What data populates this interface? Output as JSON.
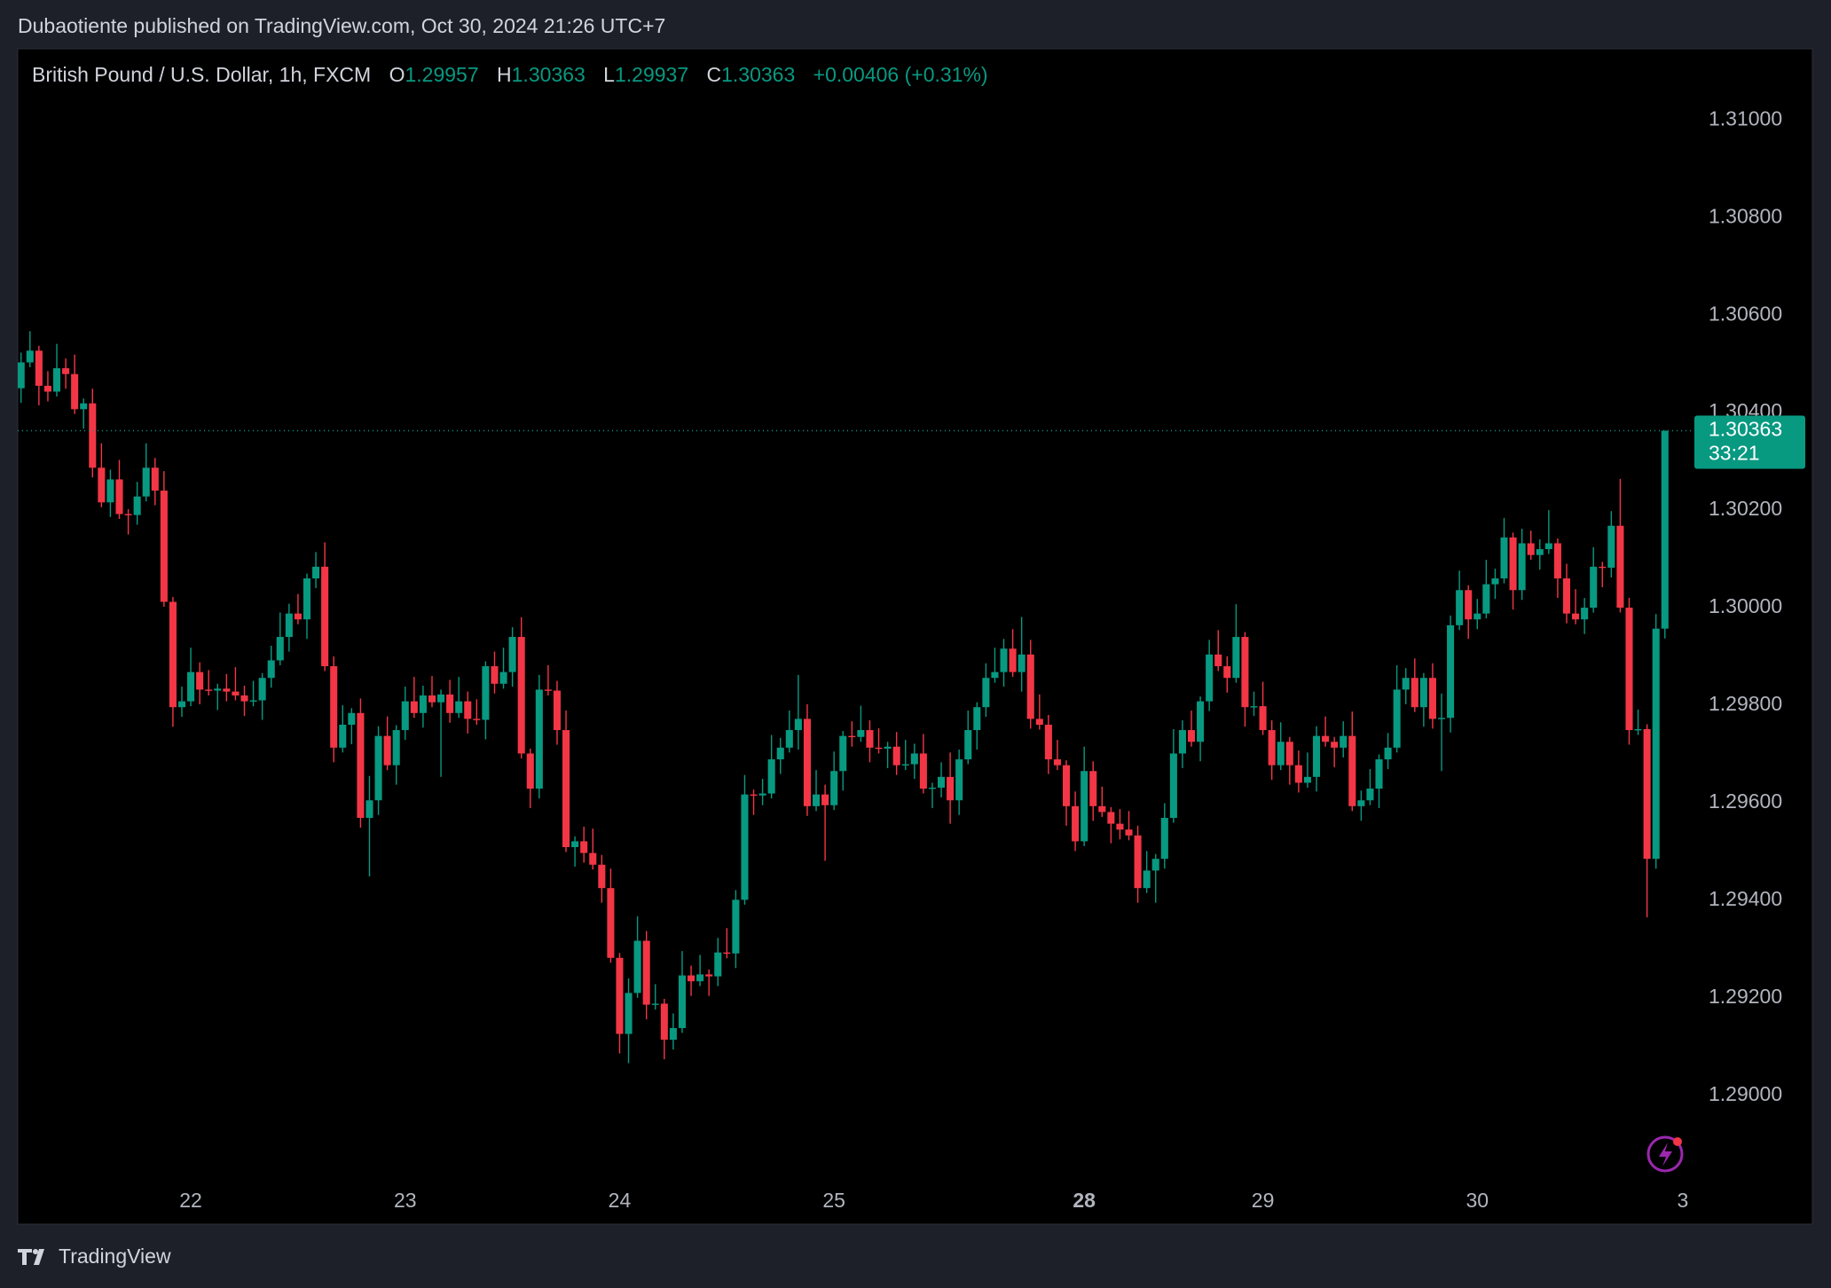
{
  "chart_data": {
    "type": "candlestick",
    "published": "Dubaotiente published on TradingView.com, Oct 30, 2024 21:26 UTC+7",
    "title": "British Pound / U.S. Dollar, 1h, FXCM",
    "ohlc_labels": [
      "O",
      "H",
      "L",
      "C"
    ],
    "change": "+0.00406 (+0.31%)",
    "countdown": "33:21",
    "brand": "TradingView",
    "up_color": "#089981",
    "down_color": "#f23645",
    "grid": false,
    "xlim": [
      -0.37,
      187.2
    ],
    "xticks": [
      {
        "value": 19,
        "label": "22"
      },
      {
        "value": 43,
        "label": "23"
      },
      {
        "value": 67,
        "label": "24"
      },
      {
        "value": 91,
        "label": "25"
      },
      {
        "value": 119,
        "label": "28",
        "bold": true
      },
      {
        "value": 139,
        "label": "29"
      },
      {
        "value": 163,
        "label": "30"
      },
      {
        "value": 186,
        "label": "3"
      }
    ],
    "ylim": [
      1.28816,
      1.31146
    ],
    "yticks": [
      {
        "value": 1.29,
        "label": "1.29000"
      },
      {
        "value": 1.292,
        "label": "1.29200"
      },
      {
        "value": 1.294,
        "label": "1.29400"
      },
      {
        "value": 1.296,
        "label": "1.29600"
      },
      {
        "value": 1.298,
        "label": "1.29800"
      },
      {
        "value": 1.3,
        "label": "1.30000"
      },
      {
        "value": 1.302,
        "label": "1.30200"
      },
      {
        "value": 1.304,
        "label": "1.30400"
      },
      {
        "value": 1.306,
        "label": "1.30600"
      },
      {
        "value": 1.308,
        "label": "1.30800"
      },
      {
        "value": 1.31,
        "label": "1.31000"
      }
    ],
    "candles": [
      [
        1.3045,
        1.30523,
        1.3042,
        1.30503
      ],
      [
        1.30503,
        1.30567,
        1.30493,
        1.30527
      ],
      [
        1.30527,
        1.30537,
        1.30415,
        1.30455
      ],
      [
        1.30455,
        1.30485,
        1.30423,
        1.30443
      ],
      [
        1.30443,
        1.30541,
        1.30433,
        1.30491
      ],
      [
        1.30491,
        1.30511,
        1.30449,
        1.30479
      ],
      [
        1.30479,
        1.30519,
        1.30397,
        1.30407
      ],
      [
        1.30407,
        1.30429,
        1.30367,
        1.30419
      ],
      [
        1.30419,
        1.30449,
        1.30267,
        1.30287
      ],
      [
        1.30287,
        1.30337,
        1.30206,
        1.30216
      ],
      [
        1.30216,
        1.30283,
        1.30186,
        1.30263
      ],
      [
        1.30263,
        1.30303,
        1.30182,
        1.30192
      ],
      [
        1.30192,
        1.30202,
        1.3015,
        1.3019
      ],
      [
        1.3019,
        1.30258,
        1.3017,
        1.30228
      ],
      [
        1.30228,
        1.30337,
        1.30218,
        1.30287
      ],
      [
        1.30287,
        1.30307,
        1.3021,
        1.3024
      ],
      [
        1.3024,
        1.3028,
        1.30002,
        1.30012
      ],
      [
        1.30012,
        1.30022,
        1.29756,
        1.29796
      ],
      [
        1.29796,
        1.29838,
        1.29776,
        1.29808
      ],
      [
        1.29808,
        1.29918,
        1.29798,
        1.29868
      ],
      [
        1.29868,
        1.29888,
        1.29802,
        1.29832
      ],
      [
        1.29832,
        1.29872,
        1.2982,
        1.2983
      ],
      [
        1.2983,
        1.29844,
        1.2979,
        1.29834
      ],
      [
        1.29834,
        1.29864,
        1.29808,
        1.29828
      ],
      [
        1.29828,
        1.29878,
        1.2981,
        1.2982
      ],
      [
        1.2982,
        1.2984,
        1.29778,
        1.29808
      ],
      [
        1.29808,
        1.2985,
        1.29798,
        1.2981
      ],
      [
        1.2981,
        1.29866,
        1.2977,
        1.29856
      ],
      [
        1.29856,
        1.29922,
        1.29836,
        1.29892
      ],
      [
        1.29892,
        1.2999,
        1.29882,
        1.2994
      ],
      [
        1.2994,
        1.30008,
        1.2991,
        1.29988
      ],
      [
        1.29988,
        1.30028,
        1.29966,
        1.29976
      ],
      [
        1.29976,
        1.3007,
        1.29936,
        1.3006
      ],
      [
        1.3006,
        1.30114,
        1.3004,
        1.30084
      ],
      [
        1.30084,
        1.30134,
        1.2987,
        1.2988
      ],
      [
        1.2988,
        1.299,
        1.29683,
        1.29713
      ],
      [
        1.29713,
        1.298,
        1.29703,
        1.2976
      ],
      [
        1.2976,
        1.29794,
        1.2972,
        1.29784
      ],
      [
        1.29784,
        1.29814,
        1.29549,
        1.29569
      ],
      [
        1.29569,
        1.29655,
        1.29449,
        1.29605
      ],
      [
        1.29605,
        1.29757,
        1.29575,
        1.29737
      ],
      [
        1.29737,
        1.29777,
        1.29667,
        1.29677
      ],
      [
        1.29677,
        1.29759,
        1.29637,
        1.29749
      ],
      [
        1.29749,
        1.29838,
        1.29729,
        1.29808
      ],
      [
        1.29808,
        1.29858,
        1.29774,
        1.29784
      ],
      [
        1.29784,
        1.2984,
        1.29754,
        1.2982
      ],
      [
        1.2982,
        1.2986,
        1.29796,
        1.29806
      ],
      [
        1.29806,
        1.29832,
        1.29653,
        1.29822
      ],
      [
        1.29822,
        1.29852,
        1.29764,
        1.29784
      ],
      [
        1.29784,
        1.29858,
        1.29774,
        1.29808
      ],
      [
        1.29808,
        1.29828,
        1.29742,
        1.29772
      ],
      [
        1.29772,
        1.29812,
        1.2976,
        1.2977
      ],
      [
        1.2977,
        1.2989,
        1.2973,
        1.2988
      ],
      [
        1.2988,
        1.2991,
        1.29824,
        1.29844
      ],
      [
        1.29844,
        1.29918,
        1.29834,
        1.29868
      ],
      [
        1.29868,
        1.2996,
        1.29838,
        1.2994
      ],
      [
        1.2994,
        1.2998,
        1.29691,
        1.29701
      ],
      [
        1.29701,
        1.29711,
        1.29589,
        1.29629
      ],
      [
        1.29629,
        1.29862,
        1.29609,
        1.29832
      ],
      [
        1.29832,
        1.29882,
        1.2982,
        1.2983
      ],
      [
        1.2983,
        1.2985,
        1.29719,
        1.29749
      ],
      [
        1.29749,
        1.29789,
        1.29499,
        1.29509
      ],
      [
        1.29509,
        1.29531,
        1.29469,
        1.29521
      ],
      [
        1.29521,
        1.29551,
        1.29477,
        1.29497
      ],
      [
        1.29497,
        1.29547,
        1.29463,
        1.29473
      ],
      [
        1.29473,
        1.29493,
        1.29395,
        1.29425
      ],
      [
        1.29425,
        1.29465,
        1.29272,
        1.29282
      ],
      [
        1.29282,
        1.29292,
        1.29086,
        1.29126
      ],
      [
        1.29126,
        1.2924,
        1.29066,
        1.2921
      ],
      [
        1.2921,
        1.29367,
        1.292,
        1.29317
      ],
      [
        1.29317,
        1.29337,
        1.29156,
        1.29186
      ],
      [
        1.29186,
        1.29228,
        1.29176,
        1.29188
      ],
      [
        1.29188,
        1.29198,
        1.29074,
        1.29114
      ],
      [
        1.29114,
        1.29168,
        1.29094,
        1.29138
      ],
      [
        1.29138,
        1.29296,
        1.29128,
        1.29246
      ],
      [
        1.29246,
        1.29266,
        1.29204,
        1.29234
      ],
      [
        1.29234,
        1.29288,
        1.29224,
        1.29248
      ],
      [
        1.29248,
        1.29258,
        1.29204,
        1.29244
      ],
      [
        1.29244,
        1.29323,
        1.29224,
        1.29293
      ],
      [
        1.29293,
        1.29343,
        1.29281,
        1.29291
      ],
      [
        1.29291,
        1.29421,
        1.29261,
        1.29401
      ],
      [
        1.29401,
        1.29657,
        1.29391,
        1.29617
      ],
      [
        1.29617,
        1.29627,
        1.29575,
        1.29615
      ],
      [
        1.29615,
        1.29649,
        1.29595,
        1.29619
      ],
      [
        1.29619,
        1.29739,
        1.29609,
        1.29689
      ],
      [
        1.29689,
        1.29733,
        1.29659,
        1.29713
      ],
      [
        1.29713,
        1.29789,
        1.29703,
        1.29749
      ],
      [
        1.29749,
        1.29862,
        1.29709,
        1.29772
      ],
      [
        1.29772,
        1.29802,
        1.29573,
        1.29593
      ],
      [
        1.29593,
        1.29667,
        1.29583,
        1.29617
      ],
      [
        1.29617,
        1.29637,
        1.29481,
        1.29595
      ],
      [
        1.29595,
        1.29705,
        1.29585,
        1.29665
      ],
      [
        1.29665,
        1.29747,
        1.29625,
        1.29737
      ],
      [
        1.29737,
        1.29767,
        1.29715,
        1.29735
      ],
      [
        1.29735,
        1.29799,
        1.29725,
        1.29749
      ],
      [
        1.29749,
        1.29769,
        1.29683,
        1.29713
      ],
      [
        1.29713,
        1.29753,
        1.29701,
        1.29711
      ],
      [
        1.29711,
        1.29725,
        1.29671,
        1.29715
      ],
      [
        1.29715,
        1.29745,
        1.29657,
        1.29677
      ],
      [
        1.29677,
        1.29729,
        1.29667,
        1.29679
      ],
      [
        1.29679,
        1.29721,
        1.29649,
        1.29701
      ],
      [
        1.29701,
        1.29741,
        1.29619,
        1.29629
      ],
      [
        1.29629,
        1.29641,
        1.29589,
        1.29631
      ],
      [
        1.29631,
        1.29683,
        1.29611,
        1.29653
      ],
      [
        1.29653,
        1.29703,
        1.29557,
        1.29605
      ],
      [
        1.29605,
        1.29709,
        1.29575,
        1.29689
      ],
      [
        1.29689,
        1.29789,
        1.29679,
        1.29749
      ],
      [
        1.29749,
        1.29806,
        1.29709,
        1.29796
      ],
      [
        1.29796,
        1.29886,
        1.29776,
        1.29856
      ],
      [
        1.29856,
        1.29918,
        1.29846,
        1.29868
      ],
      [
        1.29868,
        1.29936,
        1.29838,
        1.29916
      ],
      [
        1.29916,
        1.29956,
        1.29858,
        1.29868
      ],
      [
        1.29868,
        1.29981,
        1.29828,
        1.29904
      ],
      [
        1.29904,
        1.29934,
        1.29752,
        1.29772
      ],
      [
        1.29772,
        1.29822,
        1.2975,
        1.2976
      ],
      [
        1.2976,
        1.2978,
        1.29659,
        1.29689
      ],
      [
        1.29689,
        1.29729,
        1.29667,
        1.29677
      ],
      [
        1.29677,
        1.29687,
        1.29553,
        1.29593
      ],
      [
        1.29593,
        1.29623,
        1.29501,
        1.29521
      ],
      [
        1.29521,
        1.29715,
        1.29511,
        1.29665
      ],
      [
        1.29665,
        1.29685,
        1.29563,
        1.29593
      ],
      [
        1.29593,
        1.29633,
        1.29571,
        1.29581
      ],
      [
        1.29581,
        1.29591,
        1.29517,
        1.29557
      ],
      [
        1.29557,
        1.29587,
        1.29525,
        1.29545
      ],
      [
        1.29545,
        1.29583,
        1.29523,
        1.29533
      ],
      [
        1.29533,
        1.29553,
        1.29395,
        1.29425
      ],
      [
        1.29425,
        1.29501,
        1.29415,
        1.29461
      ],
      [
        1.29461,
        1.29495,
        1.29395,
        1.29485
      ],
      [
        1.29485,
        1.29599,
        1.29465,
        1.29569
      ],
      [
        1.29569,
        1.29751,
        1.29559,
        1.29701
      ],
      [
        1.29701,
        1.29769,
        1.29671,
        1.29749
      ],
      [
        1.29749,
        1.29789,
        1.29715,
        1.29725
      ],
      [
        1.29725,
        1.29818,
        1.29685,
        1.29808
      ],
      [
        1.29808,
        1.29934,
        1.29788,
        1.29904
      ],
      [
        1.29904,
        1.29954,
        1.2987,
        1.2988
      ],
      [
        1.2988,
        1.299,
        1.29826,
        1.29856
      ],
      [
        1.29856,
        1.30007,
        1.29846,
        1.2994
      ],
      [
        1.2994,
        1.2995,
        1.29756,
        1.29796
      ],
      [
        1.29796,
        1.29828,
        1.29778,
        1.29798
      ],
      [
        1.29798,
        1.29848,
        1.29739,
        1.29749
      ],
      [
        1.29749,
        1.29769,
        1.29647,
        1.29677
      ],
      [
        1.29677,
        1.29765,
        1.29667,
        1.29725
      ],
      [
        1.29725,
        1.29735,
        1.29637,
        1.29677
      ],
      [
        1.29677,
        1.29707,
        1.29621,
        1.29641
      ],
      [
        1.29641,
        1.29703,
        1.29631,
        1.29653
      ],
      [
        1.29653,
        1.29757,
        1.29623,
        1.29737
      ],
      [
        1.29737,
        1.29777,
        1.29715,
        1.29725
      ],
      [
        1.29725,
        1.29735,
        1.29673,
        1.29713
      ],
      [
        1.29713,
        1.29767,
        1.29693,
        1.29737
      ],
      [
        1.29737,
        1.29787,
        1.29583,
        1.29593
      ],
      [
        1.29593,
        1.29625,
        1.29563,
        1.29605
      ],
      [
        1.29605,
        1.29669,
        1.29595,
        1.29629
      ],
      [
        1.29629,
        1.29699,
        1.29589,
        1.29689
      ],
      [
        1.29689,
        1.29743,
        1.29669,
        1.29713
      ],
      [
        1.29713,
        1.29882,
        1.29703,
        1.29832
      ],
      [
        1.29832,
        1.29876,
        1.29802,
        1.29856
      ],
      [
        1.29856,
        1.29896,
        1.29786,
        1.29796
      ],
      [
        1.29796,
        1.29866,
        1.29756,
        1.29856
      ],
      [
        1.29856,
        1.29886,
        1.29752,
        1.29772
      ],
      [
        1.29772,
        1.29824,
        1.29665,
        1.29774
      ],
      [
        1.29774,
        1.29984,
        1.29744,
        1.29964
      ],
      [
        1.29964,
        1.30076,
        1.29954,
        1.30036
      ],
      [
        1.30036,
        1.30046,
        1.29936,
        1.29976
      ],
      [
        1.29976,
        1.30018,
        1.29956,
        1.29988
      ],
      [
        1.29988,
        1.30098,
        1.29978,
        1.30048
      ],
      [
        1.30048,
        1.3008,
        1.30018,
        1.3006
      ],
      [
        1.3006,
        1.30184,
        1.3005,
        1.30144
      ],
      [
        1.30144,
        1.30154,
        1.29996,
        1.30036
      ],
      [
        1.30036,
        1.30162,
        1.30016,
        1.30132
      ],
      [
        1.30132,
        1.30158,
        1.30098,
        1.30108
      ],
      [
        1.30108,
        1.3014,
        1.30078,
        1.3012
      ],
      [
        1.3012,
        1.302,
        1.3011,
        1.30132
      ],
      [
        1.30132,
        1.30142,
        1.3002,
        1.3006
      ],
      [
        1.3006,
        1.3009,
        1.29968,
        1.29988
      ],
      [
        1.29988,
        1.30038,
        1.29966,
        1.29976
      ],
      [
        1.29976,
        1.3002,
        1.29946,
        1.3
      ],
      [
        1.3,
        1.30124,
        1.2999,
        1.30084
      ],
      [
        1.30084,
        1.30094,
        1.30042,
        1.30082
      ],
      [
        1.30082,
        1.30198,
        1.30062,
        1.30168
      ],
      [
        1.30168,
        1.30264,
        1.2999,
        1.3
      ],
      [
        1.3,
        1.3002,
        1.29719,
        1.29749
      ],
      [
        1.29749,
        1.29791,
        1.29739,
        1.29751
      ],
      [
        1.29751,
        1.29761,
        1.29365,
        1.29485
      ],
      [
        1.29485,
        1.29987,
        1.29465,
        1.29957
      ],
      [
        1.29957,
        1.30363,
        1.29937,
        1.30363
      ]
    ]
  }
}
